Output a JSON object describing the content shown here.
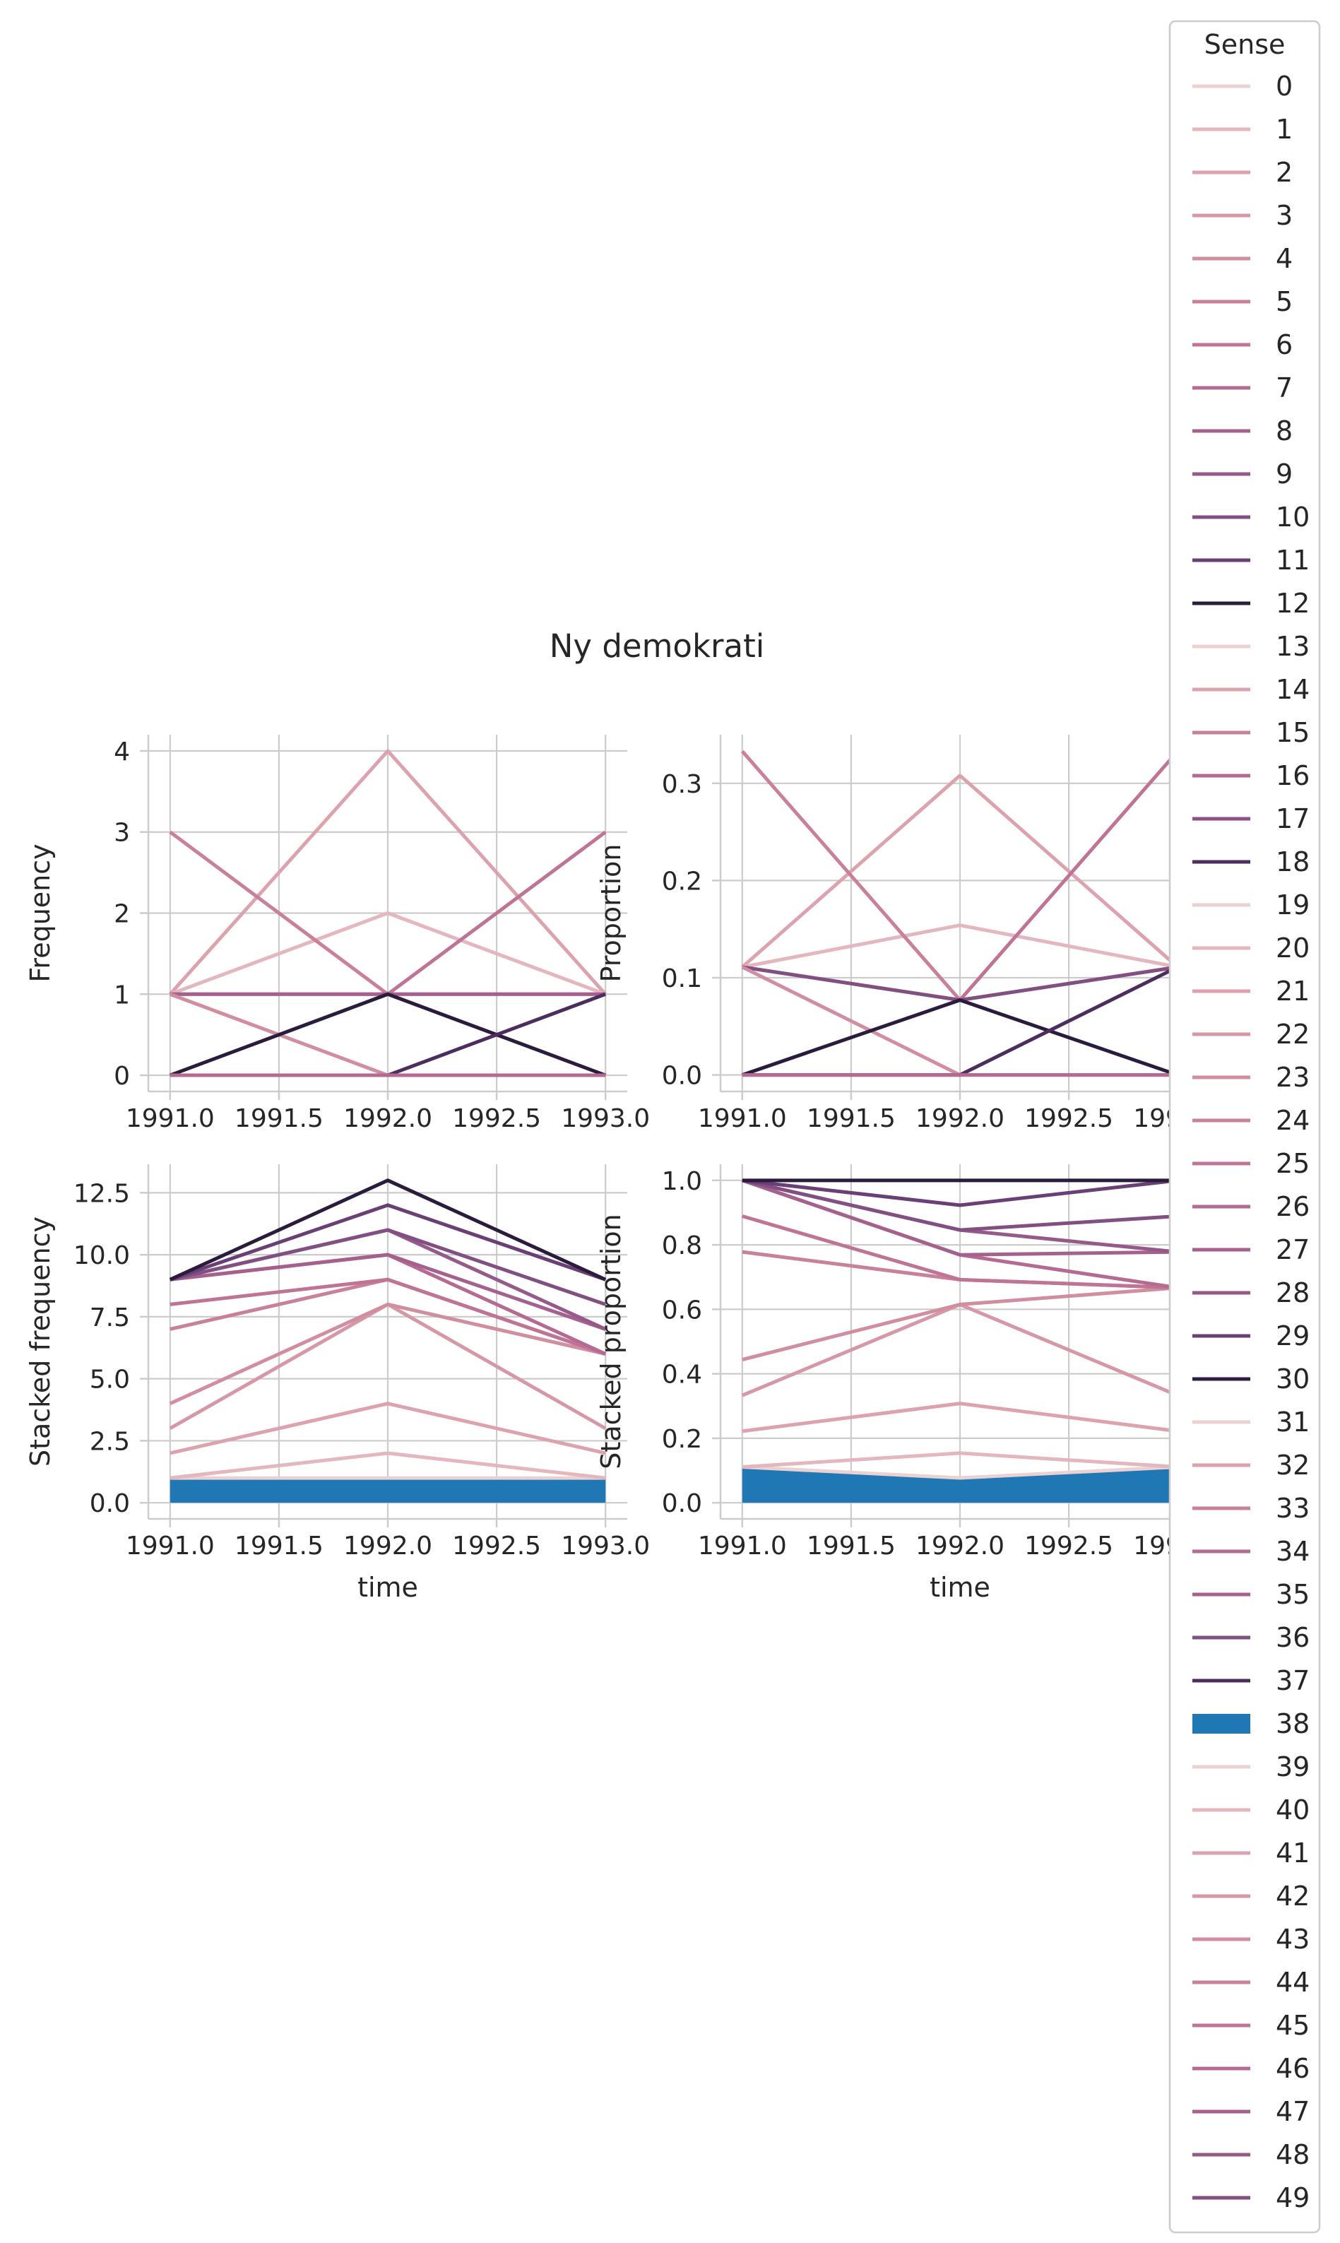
{
  "chart_data": {
    "suptitle": "Ny demokrati",
    "x": [
      1991,
      1992,
      1993
    ],
    "xlim": [
      1990.9,
      1993.1
    ],
    "xticks": [
      "1991.0",
      "1991.5",
      "1992.0",
      "1992.5",
      "1993.0"
    ],
    "legend": {
      "title": "Sense",
      "placement": "right",
      "entries": [
        "0",
        "1",
        "2",
        "3",
        "4",
        "5",
        "6",
        "7",
        "8",
        "9",
        "10",
        "11",
        "12",
        "13",
        "14",
        "15",
        "16",
        "17",
        "18",
        "19",
        "20",
        "21",
        "22",
        "23",
        "24",
        "25",
        "26",
        "27",
        "28",
        "29",
        "30",
        "31",
        "32",
        "33",
        "34",
        "35",
        "36",
        "37",
        "38",
        "39",
        "40",
        "41",
        "42",
        "43",
        "44",
        "45",
        "46",
        "47",
        "48",
        "49"
      ],
      "colors": [
        "#ebd1d1",
        "#e3b7bd",
        "#dca3ae",
        "#d698a6",
        "#d18ea0",
        "#c9809a",
        "#c07495",
        "#b56a92",
        "#a6608e",
        "#955a8a",
        "#824f83",
        "#693f75",
        "#2b1b3c",
        "#ebd1d1",
        "#dca3ae",
        "#c9809a",
        "#b56a92",
        "#8c5089",
        "#4d2d5e",
        "#ebd1d1",
        "#e3b7bd",
        "#dca3ae",
        "#d698a6",
        "#d18ea0",
        "#c9809a",
        "#c07495",
        "#b56a92",
        "#a6608e",
        "#955a8a",
        "#693f75",
        "#2b1b3c",
        "#ebd1d1",
        "#dca3ae",
        "#c9809a",
        "#b56a92",
        "#a6608e",
        "#824f83",
        "#4d2d5e",
        "#1f77b4",
        "#ebd1d1",
        "#e3b7bd",
        "#dca3ae",
        "#d698a6",
        "#d18ea0",
        "#c9809a",
        "#c07495",
        "#b56a92",
        "#a6608e",
        "#955a8a",
        "#824f83"
      ],
      "patch_entry": "38"
    },
    "charts": [
      {
        "id": "frequency",
        "type": "line",
        "ylabel": "Frequency",
        "xlabel": "",
        "ylim": [
          -0.2,
          4.2
        ],
        "yticks": [
          "0",
          "1",
          "2",
          "3",
          "4"
        ],
        "grid": true,
        "series": [
          {
            "values": [
              1,
              4,
              1
            ],
            "color": "#dca3ae"
          },
          {
            "values": [
              1,
              2,
              1
            ],
            "color": "#e3b7bd"
          },
          {
            "values": [
              3,
              1,
              1
            ],
            "color": "#c9809a"
          },
          {
            "values": [
              1,
              1,
              3
            ],
            "color": "#c07495"
          },
          {
            "values": [
              1,
              1,
              1
            ],
            "color": "#a6608e"
          },
          {
            "values": [
              1,
              0,
              0
            ],
            "color": "#d18ea0"
          },
          {
            "values": [
              0,
              1,
              0
            ],
            "color": "#2b1b3c"
          },
          {
            "values": [
              0,
              0,
              1
            ],
            "color": "#4d2d5e"
          },
          {
            "values": [
              0,
              0,
              0
            ],
            "color": "#b56a92"
          }
        ]
      },
      {
        "id": "proportion",
        "type": "line",
        "ylabel": "Proportion",
        "xlabel": "",
        "ylim": [
          -0.017,
          0.35
        ],
        "yticks": [
          "0.0",
          "0.1",
          "0.2",
          "0.3"
        ],
        "grid": true,
        "series": [
          {
            "values": [
              0.111,
              0.308,
              0.111
            ],
            "color": "#dca3ae"
          },
          {
            "values": [
              0.111,
              0.154,
              0.111
            ],
            "color": "#e3b7bd"
          },
          {
            "values": [
              0.333,
              0.077,
              0.111
            ],
            "color": "#c9809a"
          },
          {
            "values": [
              0.111,
              0.077,
              0.333
            ],
            "color": "#c07495"
          },
          {
            "values": [
              0.111,
              0.077,
              0.111
            ],
            "color": "#824f83"
          },
          {
            "values": [
              0.111,
              0.0,
              0.0
            ],
            "color": "#d18ea0"
          },
          {
            "values": [
              0.0,
              0.077,
              0.0
            ],
            "color": "#2b1b3c"
          },
          {
            "values": [
              0.0,
              0.0,
              0.111
            ],
            "color": "#4d2d5e"
          },
          {
            "values": [
              0.0,
              0.0,
              0.0
            ],
            "color": "#b56a92"
          }
        ]
      },
      {
        "id": "stacked-frequency",
        "type": "area",
        "ylabel": "Stacked frequency",
        "xlabel": "time",
        "ylim": [
          -0.65,
          13.65
        ],
        "yticks": [
          "0.0",
          "2.5",
          "5.0",
          "7.5",
          "10.0",
          "12.5"
        ],
        "grid": true,
        "fill": {
          "values": [
            1,
            1,
            1
          ],
          "color": "#1f77b4"
        },
        "series": [
          {
            "values": [
              1,
              1,
              1
            ],
            "color": "#ebd1d1"
          },
          {
            "values": [
              1,
              2,
              1
            ],
            "color": "#e3b7bd"
          },
          {
            "values": [
              2,
              4,
              2
            ],
            "color": "#dca3ae"
          },
          {
            "values": [
              3,
              8,
              3
            ],
            "color": "#d698a6"
          },
          {
            "values": [
              4,
              8,
              6
            ],
            "color": "#d18ea0"
          },
          {
            "values": [
              7,
              9,
              6
            ],
            "color": "#c9809a"
          },
          {
            "values": [
              8,
              9,
              6
            ],
            "color": "#c07495"
          },
          {
            "values": [
              9,
              10,
              6
            ],
            "color": "#b56a92"
          },
          {
            "values": [
              9,
              10,
              7
            ],
            "color": "#a6608e"
          },
          {
            "values": [
              9,
              11,
              7
            ],
            "color": "#955a8a"
          },
          {
            "values": [
              9,
              11,
              8
            ],
            "color": "#824f83"
          },
          {
            "values": [
              9,
              12,
              9
            ],
            "color": "#693f75"
          },
          {
            "values": [
              9,
              13,
              9
            ],
            "color": "#2b1b3c"
          }
        ]
      },
      {
        "id": "stacked-proportion",
        "type": "area",
        "ylabel": "Stacked proportion",
        "xlabel": "time",
        "ylim": [
          -0.05,
          1.05
        ],
        "yticks": [
          "0.0",
          "0.2",
          "0.4",
          "0.6",
          "0.8",
          "1.0"
        ],
        "grid": true,
        "fill": {
          "values": [
            0.111,
            0.077,
            0.111
          ],
          "color": "#1f77b4"
        },
        "series": [
          {
            "values": [
              0.111,
              0.077,
              0.111
            ],
            "color": "#ebd1d1"
          },
          {
            "values": [
              0.111,
              0.154,
              0.111
            ],
            "color": "#e3b7bd"
          },
          {
            "values": [
              0.222,
              0.308,
              0.222
            ],
            "color": "#dca3ae"
          },
          {
            "values": [
              0.333,
              0.615,
              0.333
            ],
            "color": "#d698a6"
          },
          {
            "values": [
              0.444,
              0.615,
              0.667
            ],
            "color": "#d18ea0"
          },
          {
            "values": [
              0.778,
              0.692,
              0.667
            ],
            "color": "#c9809a"
          },
          {
            "values": [
              0.889,
              0.692,
              0.667
            ],
            "color": "#c07495"
          },
          {
            "values": [
              1.0,
              0.769,
              0.667
            ],
            "color": "#b56a92"
          },
          {
            "values": [
              1.0,
              0.769,
              0.778
            ],
            "color": "#a6608e"
          },
          {
            "values": [
              1.0,
              0.846,
              0.778
            ],
            "color": "#955a8a"
          },
          {
            "values": [
              1.0,
              0.846,
              0.889
            ],
            "color": "#824f83"
          },
          {
            "values": [
              1.0,
              0.923,
              1.0
            ],
            "color": "#693f75"
          },
          {
            "values": [
              1.0,
              1.0,
              1.0
            ],
            "color": "#2b1b3c"
          }
        ]
      }
    ]
  }
}
